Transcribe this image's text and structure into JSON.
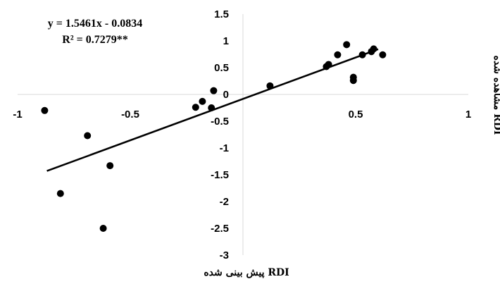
{
  "chart_data": {
    "type": "scatter",
    "xlim": [
      -1,
      1
    ],
    "ylim": [
      -3,
      1.5
    ],
    "x_ticks": [
      -1,
      -0.5,
      0,
      0.5,
      1
    ],
    "x_tick_labels": [
      "-1",
      "-0.5",
      "0",
      "0.5",
      "1"
    ],
    "y_ticks": [
      -3,
      -2.5,
      -2,
      -1.5,
      -1,
      -0.5,
      0,
      0.5,
      1,
      1.5
    ],
    "y_tick_labels": [
      "-3",
      "-2.5",
      "-2",
      "-1.5",
      "-1",
      "-0.5",
      "0",
      "0.5",
      "1",
      "1.5"
    ],
    "grid": false,
    "xlabel": "RDI پیش بینی شده",
    "ylabel": "RDI مشاهده شده",
    "series": [
      {
        "points": [
          {
            "x": -0.88,
            "y": -0.3
          },
          {
            "x": -0.81,
            "y": -1.85
          },
          {
            "x": -0.69,
            "y": -0.77
          },
          {
            "x": -0.62,
            "y": -2.5
          },
          {
            "x": -0.59,
            "y": -1.33
          },
          {
            "x": -0.21,
            "y": -0.24
          },
          {
            "x": -0.18,
            "y": -0.13
          },
          {
            "x": -0.14,
            "y": -0.25
          },
          {
            "x": -0.13,
            "y": 0.07
          },
          {
            "x": 0.12,
            "y": 0.16
          },
          {
            "x": 0.37,
            "y": 0.52
          },
          {
            "x": 0.38,
            "y": 0.56
          },
          {
            "x": 0.42,
            "y": 0.74
          },
          {
            "x": 0.46,
            "y": 0.93
          },
          {
            "x": 0.49,
            "y": 0.32
          },
          {
            "x": 0.49,
            "y": 0.26
          },
          {
            "x": 0.53,
            "y": 0.74
          },
          {
            "x": 0.57,
            "y": 0.8
          },
          {
            "x": 0.58,
            "y": 0.85
          },
          {
            "x": 0.62,
            "y": 0.74
          }
        ]
      }
    ],
    "trendline": {
      "slope": 1.5461,
      "intercept": -0.0834,
      "x_range": [
        -0.87,
        0.6
      ]
    },
    "annotations": {
      "equation": "y = 1.5461x - 0.0834",
      "r_squared": "R² = 0.7279**"
    },
    "colors": {
      "points": "#000000",
      "line": "#000000",
      "axis": "#d9d9d9",
      "text": "#000000"
    }
  }
}
